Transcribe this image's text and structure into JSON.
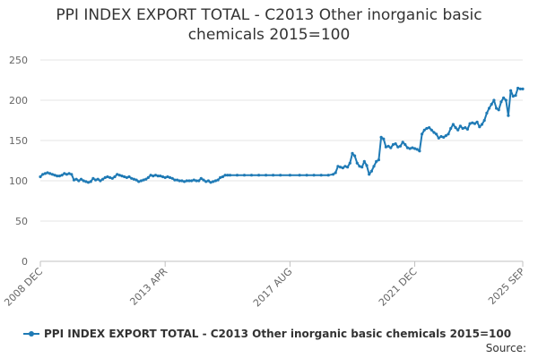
{
  "chart_data": {
    "type": "line",
    "title": "PPI INDEX EXPORT TOTAL - C2013 Other inorganic basic chemicals 2015=100",
    "title_lines": [
      "PPI INDEX EXPORT TOTAL - C2013 Other inorganic basic",
      "chemicals 2015=100"
    ],
    "xlabel": "",
    "ylabel": "",
    "ylim": [
      0,
      250
    ],
    "yticks": [
      0,
      50,
      100,
      150,
      200,
      250
    ],
    "xlim": [
      "2008-12",
      "2025-09"
    ],
    "xticks": [
      {
        "date": "2008-12",
        "label": "2008 DEC"
      },
      {
        "date": "2013-04",
        "label": "2013 APR"
      },
      {
        "date": "2017-08",
        "label": "2017 AUG"
      },
      {
        "date": "2021-12",
        "label": "2021 DEC"
      },
      {
        "date": "2025-09",
        "label": "2025 SEP"
      }
    ],
    "grid": true,
    "legend_position": "bottom",
    "source_label": "Source:",
    "color": "#1f7ab5",
    "series": [
      {
        "name": "PPI INDEX EXPORT TOTAL - C2013 Other inorganic basic chemicals 2015=100",
        "points": [
          [
            "2008-12",
            105
          ],
          [
            "2009-01",
            108
          ],
          [
            "2009-02",
            109
          ],
          [
            "2009-03",
            110
          ],
          [
            "2009-04",
            109
          ],
          [
            "2009-05",
            108
          ],
          [
            "2009-06",
            107
          ],
          [
            "2009-07",
            106
          ],
          [
            "2009-08",
            106
          ],
          [
            "2009-09",
            107
          ],
          [
            "2009-10",
            109
          ],
          [
            "2009-11",
            108
          ],
          [
            "2009-12",
            109
          ],
          [
            "2010-01",
            108
          ],
          [
            "2010-02",
            101
          ],
          [
            "2010-03",
            102
          ],
          [
            "2010-04",
            100
          ],
          [
            "2010-05",
            102
          ],
          [
            "2010-06",
            100
          ],
          [
            "2010-07",
            99
          ],
          [
            "2010-08",
            98
          ],
          [
            "2010-09",
            99
          ],
          [
            "2010-10",
            103
          ],
          [
            "2010-11",
            101
          ],
          [
            "2010-12",
            102
          ],
          [
            "2011-01",
            100
          ],
          [
            "2011-02",
            102
          ],
          [
            "2011-03",
            104
          ],
          [
            "2011-04",
            105
          ],
          [
            "2011-05",
            104
          ],
          [
            "2011-06",
            103
          ],
          [
            "2011-07",
            105
          ],
          [
            "2011-08",
            108
          ],
          [
            "2011-09",
            107
          ],
          [
            "2011-10",
            106
          ],
          [
            "2011-11",
            105
          ],
          [
            "2011-12",
            104
          ],
          [
            "2012-01",
            105
          ],
          [
            "2012-02",
            103
          ],
          [
            "2012-03",
            102
          ],
          [
            "2012-04",
            101
          ],
          [
            "2012-05",
            99
          ],
          [
            "2012-06",
            100
          ],
          [
            "2012-07",
            101
          ],
          [
            "2012-08",
            102
          ],
          [
            "2012-09",
            104
          ],
          [
            "2012-10",
            107
          ],
          [
            "2012-11",
            106
          ],
          [
            "2012-12",
            107
          ],
          [
            "2013-01",
            106
          ],
          [
            "2013-02",
            106
          ],
          [
            "2013-03",
            105
          ],
          [
            "2013-04",
            104
          ],
          [
            "2013-05",
            105
          ],
          [
            "2013-06",
            104
          ],
          [
            "2013-07",
            103
          ],
          [
            "2013-08",
            101
          ],
          [
            "2013-09",
            101
          ],
          [
            "2013-10",
            100
          ],
          [
            "2013-11",
            100
          ],
          [
            "2013-12",
            99
          ],
          [
            "2014-01",
            100
          ],
          [
            "2014-02",
            100
          ],
          [
            "2014-03",
            100
          ],
          [
            "2014-04",
            101
          ],
          [
            "2014-05",
            100
          ],
          [
            "2014-06",
            100
          ],
          [
            "2014-07",
            103
          ],
          [
            "2014-08",
            101
          ],
          [
            "2014-09",
            99
          ],
          [
            "2014-10",
            100
          ],
          [
            "2014-11",
            98
          ],
          [
            "2014-12",
            99
          ],
          [
            "2015-01",
            100
          ],
          [
            "2015-02",
            101
          ],
          [
            "2015-03",
            104
          ],
          [
            "2015-04",
            105
          ],
          [
            "2015-05",
            107
          ],
          [
            "2015-06",
            107
          ],
          [
            "2015-07",
            107
          ],
          [
            "2015-10",
            107
          ],
          [
            "2016-01",
            107
          ],
          [
            "2016-04",
            107
          ],
          [
            "2016-07",
            107
          ],
          [
            "2016-10",
            107
          ],
          [
            "2017-01",
            107
          ],
          [
            "2017-04",
            107
          ],
          [
            "2017-08",
            107
          ],
          [
            "2017-12",
            107
          ],
          [
            "2018-03",
            107
          ],
          [
            "2018-06",
            107
          ],
          [
            "2018-09",
            107
          ],
          [
            "2018-12",
            107
          ],
          [
            "2019-02",
            108
          ],
          [
            "2019-03",
            110
          ],
          [
            "2019-04",
            118
          ],
          [
            "2019-05",
            117
          ],
          [
            "2019-06",
            116
          ],
          [
            "2019-07",
            118
          ],
          [
            "2019-08",
            117
          ],
          [
            "2019-09",
            122
          ],
          [
            "2019-10",
            134
          ],
          [
            "2019-11",
            131
          ],
          [
            "2019-12",
            122
          ],
          [
            "2020-01",
            118
          ],
          [
            "2020-02",
            117
          ],
          [
            "2020-03",
            124
          ],
          [
            "2020-04",
            119
          ],
          [
            "2020-05",
            108
          ],
          [
            "2020-06",
            112
          ],
          [
            "2020-07",
            118
          ],
          [
            "2020-08",
            124
          ],
          [
            "2020-09",
            126
          ],
          [
            "2020-10",
            154
          ],
          [
            "2020-11",
            152
          ],
          [
            "2020-12",
            142
          ],
          [
            "2021-01",
            143
          ],
          [
            "2021-02",
            141
          ],
          [
            "2021-03",
            145
          ],
          [
            "2021-04",
            146
          ],
          [
            "2021-05",
            142
          ],
          [
            "2021-06",
            143
          ],
          [
            "2021-07",
            148
          ],
          [
            "2021-08",
            145
          ],
          [
            "2021-09",
            141
          ],
          [
            "2021-10",
            140
          ],
          [
            "2021-11",
            141
          ],
          [
            "2021-12",
            140
          ],
          [
            "2022-01",
            139
          ],
          [
            "2022-02",
            137
          ],
          [
            "2022-03",
            158
          ],
          [
            "2022-04",
            163
          ],
          [
            "2022-05",
            165
          ],
          [
            "2022-06",
            166
          ],
          [
            "2022-07",
            163
          ],
          [
            "2022-08",
            160
          ],
          [
            "2022-09",
            158
          ],
          [
            "2022-10",
            153
          ],
          [
            "2022-11",
            155
          ],
          [
            "2022-12",
            154
          ],
          [
            "2023-01",
            156
          ],
          [
            "2023-02",
            158
          ],
          [
            "2023-03",
            165
          ],
          [
            "2023-04",
            170
          ],
          [
            "2023-05",
            166
          ],
          [
            "2023-06",
            163
          ],
          [
            "2023-07",
            168
          ],
          [
            "2023-08",
            165
          ],
          [
            "2023-09",
            166
          ],
          [
            "2023-10",
            164
          ],
          [
            "2023-11",
            171
          ],
          [
            "2023-12",
            172
          ],
          [
            "2024-01",
            171
          ],
          [
            "2024-02",
            173
          ],
          [
            "2024-03",
            167
          ],
          [
            "2024-04",
            170
          ],
          [
            "2024-05",
            175
          ],
          [
            "2024-06",
            184
          ],
          [
            "2024-07",
            190
          ],
          [
            "2024-08",
            195
          ],
          [
            "2024-09",
            200
          ],
          [
            "2024-10",
            190
          ],
          [
            "2024-11",
            188
          ],
          [
            "2024-12",
            198
          ],
          [
            "2025-01",
            203
          ],
          [
            "2025-02",
            200
          ],
          [
            "2025-03",
            181
          ],
          [
            "2025-04",
            212
          ],
          [
            "2025-05",
            205
          ],
          [
            "2025-06",
            206
          ],
          [
            "2025-07",
            215
          ],
          [
            "2025-08",
            214
          ],
          [
            "2025-09",
            214
          ]
        ]
      }
    ]
  }
}
